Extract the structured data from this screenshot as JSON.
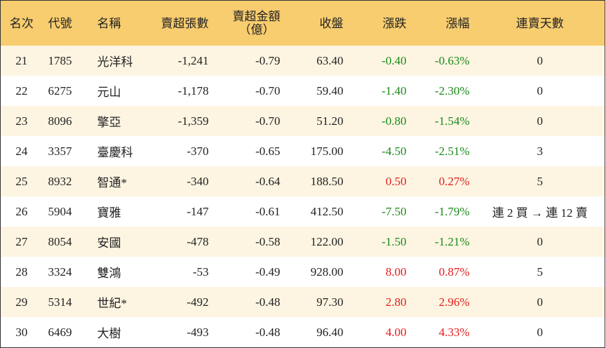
{
  "table": {
    "header": [
      "名次",
      "代號",
      "名稱",
      "賣超張數",
      [
        "賣超金額",
        "（億）"
      ],
      "收盤",
      "漲跌",
      "漲幅",
      "連賣天數"
    ],
    "rows": [
      [
        "21",
        "1785",
        "光洋科",
        "-1,241",
        "-0.79",
        "63.40",
        "-0.40",
        "-0.63%",
        "0"
      ],
      [
        "22",
        "6275",
        "元山",
        "-1,178",
        "-0.70",
        "59.40",
        "-1.40",
        "-2.30%",
        "0"
      ],
      [
        "23",
        "8096",
        "擎亞",
        "-1,359",
        "-0.70",
        "51.20",
        "-0.80",
        "-1.54%",
        "0"
      ],
      [
        "24",
        "3357",
        "臺慶科",
        "-370",
        "-0.65",
        "175.00",
        "-4.50",
        "-2.51%",
        "3"
      ],
      [
        "25",
        "8932",
        "智通*",
        "-340",
        "-0.64",
        "188.50",
        "0.50",
        "0.27%",
        "5"
      ],
      [
        "26",
        "5904",
        "寶雅",
        "-147",
        "-0.61",
        "412.50",
        "-7.50",
        "-1.79%",
        "連 2 買 → 連 12 賣"
      ],
      [
        "27",
        "8054",
        "安國",
        "-478",
        "-0.58",
        "122.00",
        "-1.50",
        "-1.21%",
        "0"
      ],
      [
        "28",
        "3324",
        "雙鴻",
        "-53",
        "-0.49",
        "928.00",
        "8.00",
        "0.87%",
        "5"
      ],
      [
        "29",
        "5314",
        "世紀*",
        "-492",
        "-0.48",
        "97.30",
        "2.80",
        "2.96%",
        "0"
      ],
      [
        "30",
        "6469",
        "大樹",
        "-493",
        "-0.48",
        "96.40",
        "4.00",
        "4.33%",
        "0"
      ]
    ]
  }
}
